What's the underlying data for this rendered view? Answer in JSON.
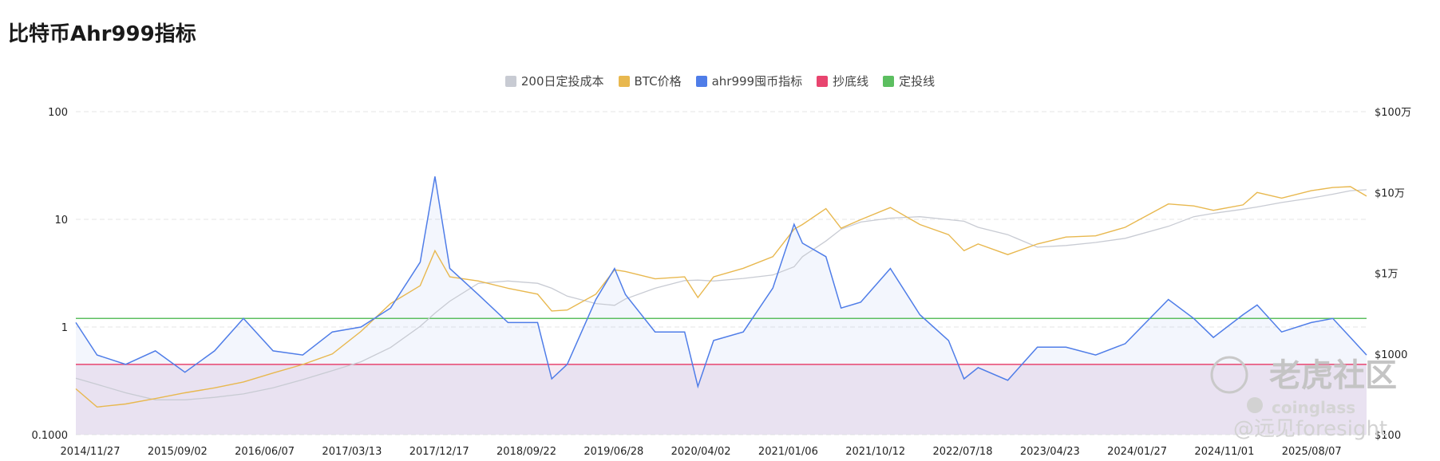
{
  "title": "比特币Ahr999指标",
  "chart_data": {
    "type": "line",
    "title": "比特币Ahr999指标",
    "legend": [
      "200日定投成本",
      "BTC价格",
      "ahr999囤币指标",
      "抄底线",
      "定投线"
    ],
    "legend_position": "top-center",
    "colors": {
      "200日定投成本": "#c8cbd3",
      "BTC价格": "#e8b84f",
      "ahr999囤币指标": "#4f7de8",
      "抄底线": "#e8456f",
      "定投线": "#5cbf60"
    },
    "x_tick_labels": [
      "2014/11/27",
      "2015/09/02",
      "2016/06/07",
      "2017/03/13",
      "2017/12/17",
      "2018/09/22",
      "2019/06/28",
      "2020/04/02",
      "2021/01/06",
      "2021/10/12",
      "2022/07/18",
      "2023/04/23",
      "2024/01/27",
      "2024/11/01",
      "2025/08/07"
    ],
    "y_left": {
      "scale": "log",
      "range": [
        0.1,
        100
      ],
      "tick_labels": [
        "100",
        "10",
        "1",
        "0.1000"
      ]
    },
    "y_right": {
      "scale": "log",
      "range": [
        100,
        1000000
      ],
      "tick_labels": [
        "$100万",
        "$10万",
        "$1万",
        "$1000",
        "$100"
      ]
    },
    "thresholds": {
      "抄底线": 0.45,
      "定投线": 1.2
    },
    "grid": "horizontal dashed",
    "x_dates": [
      "2014-11-27",
      "2015-02-01",
      "2015-05-01",
      "2015-08-01",
      "2015-11-01",
      "2016-02-01",
      "2016-05-01",
      "2016-08-01",
      "2016-11-01",
      "2017-02-01",
      "2017-05-01",
      "2017-08-01",
      "2017-11-01",
      "2017-12-17",
      "2018-02-01",
      "2018-05-01",
      "2018-08-01",
      "2018-11-01",
      "2018-12-15",
      "2019-02-01",
      "2019-05-01",
      "2019-06-28",
      "2019-08-01",
      "2019-11-01",
      "2020-02-01",
      "2020-03-13",
      "2020-05-01",
      "2020-08-01",
      "2020-11-01",
      "2021-01-06",
      "2021-02-01",
      "2021-04-15",
      "2021-06-01",
      "2021-08-01",
      "2021-11-01",
      "2022-02-01",
      "2022-05-01",
      "2022-06-18",
      "2022-08-01",
      "2022-11-01",
      "2023-02-01",
      "2023-05-01",
      "2023-08-01",
      "2023-11-01",
      "2024-03-14",
      "2024-06-01",
      "2024-08-01",
      "2024-11-01",
      "2024-12-15",
      "2025-03-01",
      "2025-06-01",
      "2025-08-07",
      "2025-10-01",
      "2025-11-20"
    ],
    "series": [
      {
        "name": "ahr999囤币指标",
        "axis": "left",
        "values": [
          1.1,
          0.55,
          0.45,
          0.6,
          0.38,
          0.6,
          1.2,
          0.6,
          0.55,
          0.9,
          1.0,
          1.5,
          4.0,
          25,
          3.5,
          2.0,
          1.1,
          1.1,
          0.33,
          0.45,
          1.8,
          3.5,
          2.0,
          0.9,
          0.9,
          0.28,
          0.75,
          0.9,
          2.3,
          9.0,
          6.0,
          4.5,
          1.5,
          1.7,
          3.5,
          1.3,
          0.75,
          0.33,
          0.42,
          0.32,
          0.65,
          0.65,
          0.55,
          0.7,
          1.8,
          1.2,
          0.8,
          1.3,
          1.6,
          0.9,
          1.1,
          1.2,
          0.8,
          0.55
        ]
      },
      {
        "name": "BTC价格",
        "axis": "right",
        "values": [
          370,
          220,
          240,
          280,
          330,
          380,
          450,
          580,
          740,
          1000,
          1900,
          4200,
          7000,
          19000,
          9000,
          8000,
          6500,
          5500,
          3400,
          3500,
          5500,
          11000,
          10500,
          8500,
          9000,
          5000,
          9000,
          11500,
          16000,
          35000,
          40000,
          63000,
          36000,
          46000,
          65000,
          40000,
          30000,
          19000,
          23000,
          17000,
          23000,
          28000,
          29000,
          37000,
          72000,
          68000,
          60000,
          70000,
          100000,
          85000,
          105000,
          115000,
          118000,
          90000
        ]
      },
      {
        "name": "200日定投成本",
        "axis": "right",
        "values": [
          500,
          420,
          330,
          270,
          270,
          290,
          320,
          380,
          480,
          620,
          800,
          1200,
          2200,
          3200,
          4500,
          7500,
          8000,
          7500,
          6500,
          5200,
          4200,
          4000,
          4800,
          6500,
          8100,
          8200,
          8000,
          8600,
          9500,
          12000,
          16000,
          25000,
          35000,
          43000,
          48000,
          50000,
          46000,
          44000,
          37000,
          30000,
          21000,
          22000,
          24000,
          27000,
          38000,
          50000,
          55000,
          62000,
          66000,
          75000,
          85000,
          95000,
          105000,
          108000
        ]
      }
    ]
  },
  "watermark": {
    "tiger_text": "老虎社区",
    "brand_text": "coinglass",
    "handle_text": "@远见foresight"
  }
}
